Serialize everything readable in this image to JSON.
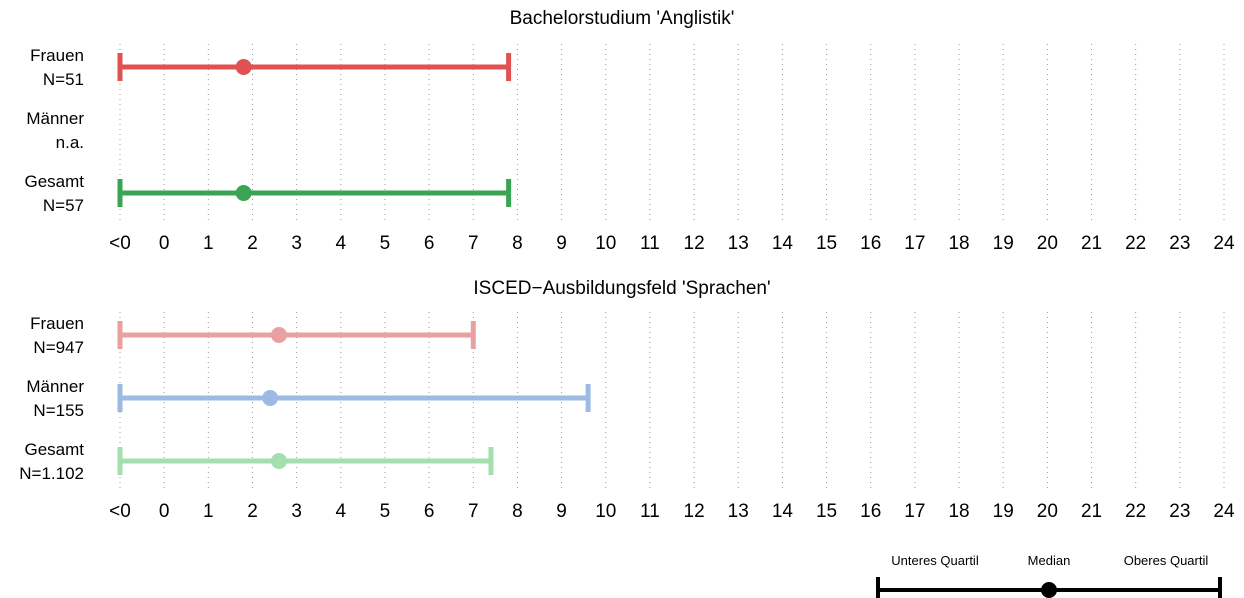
{
  "chart_data": {
    "type": "range",
    "x_tick_labels": [
      "<0",
      "0",
      "1",
      "2",
      "3",
      "4",
      "5",
      "6",
      "7",
      "8",
      "9",
      "10",
      "11",
      "12",
      "13",
      "14",
      "15",
      "16",
      "17",
      "18",
      "19",
      "20",
      "21",
      "22",
      "23",
      "24"
    ],
    "xlim": [
      -1,
      24
    ],
    "grid": "vertical dotted",
    "panels": [
      {
        "title": "Bachelorstudium 'Anglistik'",
        "rows": [
          {
            "label": "Frauen",
            "n_label": "N=51",
            "color": "#e05252",
            "q1": -1,
            "median": 1.8,
            "q3": 7.8
          },
          {
            "label": "Männer",
            "n_label": "n.a.",
            "color": "#4e79a7",
            "q1": null,
            "median": null,
            "q3": null
          },
          {
            "label": "Gesamt",
            "n_label": "N=57",
            "color": "#3aa354",
            "q1": -1,
            "median": 1.8,
            "q3": 7.8
          }
        ]
      },
      {
        "title": "ISCED−Ausbildungsfeld 'Sprachen'",
        "rows": [
          {
            "label": "Frauen",
            "n_label": "N=947",
            "color": "#e8a0a0",
            "q1": -1,
            "median": 2.6,
            "q3": 7.0
          },
          {
            "label": "Männer",
            "n_label": "N=155",
            "color": "#9dbbe2",
            "q1": -1,
            "median": 2.4,
            "q3": 9.6
          },
          {
            "label": "Gesamt",
            "n_label": "N=1.102",
            "color": "#a3e0ad",
            "q1": -1,
            "median": 2.6,
            "q3": 7.4
          }
        ]
      }
    ],
    "legend": {
      "position": "bottom-right",
      "color": "#000000",
      "lower_label": "Unteres Quartil",
      "median_label": "Median",
      "upper_label": "Oberes Quartil"
    }
  }
}
